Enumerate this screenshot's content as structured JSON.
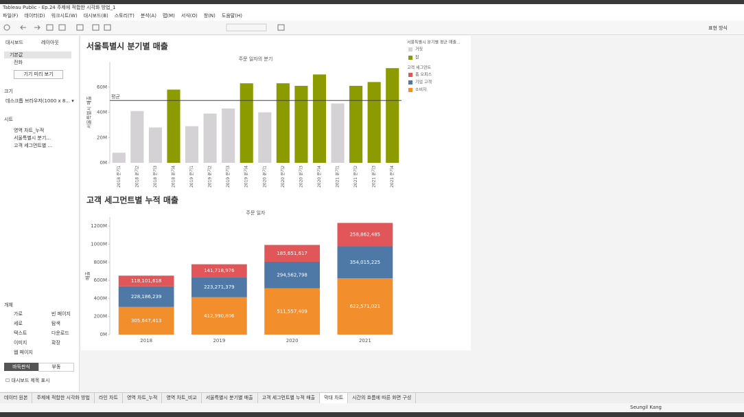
{
  "window_title": "Tableau Public - Ep.24 주제에 적합한 시각화 방법_1",
  "menu": [
    "파일(F)",
    "데이터(D)",
    "워크시트(W)",
    "대시보드(B)",
    "스토리(T)",
    "분석(A)",
    "맵(M)",
    "서식(O)",
    "창(N)",
    "도움말(H)"
  ],
  "toolbar": {
    "show_me": "표현 방식"
  },
  "sidebar": {
    "tabs": [
      "대시보드",
      "레이아웃"
    ],
    "devices": [
      "기본값",
      "전화"
    ],
    "preview_button": "기기 미리 보기",
    "size_heading": "크기",
    "size_value": "데스크톱 브라우저(1000 x 8... ▾",
    "sheets_heading": "시트",
    "sheets": [
      "영역 차트_누적",
      "서울특별시 분기...",
      "고객 세그먼트별 ..."
    ],
    "objects_heading": "개체",
    "objects": [
      "가로",
      "빈 페이지",
      "세로",
      "탐색",
      "텍스트",
      "다운로드",
      "이미지",
      "확장",
      "웹 페이지"
    ],
    "layout_modes": [
      "바둑판식",
      "부동"
    ],
    "show_title": "대시보드 제목 표시"
  },
  "chart_data": [
    {
      "type": "bar",
      "title": "서울특별시 분기별 매출",
      "subtitle": "주문 일자의 분기",
      "y_label": "서울특별시 매출",
      "categories": [
        "2018 분기1",
        "2018 분기2",
        "2018 분기3",
        "2018 분기4",
        "2019 분기1",
        "2019 분기2",
        "2019 분기3",
        "2019 분기4",
        "2020 분기1",
        "2020 분기2",
        "2020 분기3",
        "2020 분기4",
        "2021 분기1",
        "2021 분기2",
        "2021 분기3",
        "2021 분기4"
      ],
      "values": [
        8,
        41,
        28,
        58,
        29,
        39,
        43,
        63,
        40,
        63,
        61,
        70,
        47,
        61,
        64,
        75
      ],
      "ylim": [
        0,
        80
      ],
      "yticks": [
        {
          "value": 0,
          "label": "0M"
        },
        {
          "value": 20,
          "label": "20M"
        },
        {
          "value": 40,
          "label": "40M"
        },
        {
          "value": 60,
          "label": "60M"
        }
      ],
      "reference_line": {
        "label": "평균",
        "value": 49.4
      },
      "legend": {
        "title": "서울특별시 분기별 평균 매출...",
        "items": [
          {
            "name": "거짓",
            "color": "#d4d2d4"
          },
          {
            "name": "참",
            "color": "#8c9c00"
          }
        ]
      }
    },
    {
      "type": "stacked_bar",
      "title": "고객 세그먼트별 누적 매출",
      "subtitle": "주문 일자",
      "y_label": "매출",
      "categories": [
        "2018",
        "2019",
        "2020",
        "2021"
      ],
      "series": [
        {
          "name": "소비자",
          "color": "#f28e2b",
          "values": [
            305647413,
            412990806,
            511557409,
            622571021
          ],
          "value_labels": [
            "305,647,413",
            "412,990,806",
            "511,557,409",
            "622,571,021"
          ]
        },
        {
          "name": "기업 고객",
          "color": "#4e79a7",
          "values": [
            228186239,
            223271379,
            294562798,
            354015225
          ],
          "value_labels": [
            "228,186,239",
            "223,271,379",
            "294,562,798",
            "354,015,225"
          ]
        },
        {
          "name": "홈 오피스",
          "color": "#e15759",
          "values": [
            118101618,
            141718976,
            185651617,
            258862485
          ],
          "value_labels": [
            "118,101,618",
            "141,718,976",
            "185,651,617",
            "258,862,485"
          ]
        }
      ],
      "legend_title": "고객 세그먼트",
      "ylim": [
        0,
        1300000000
      ],
      "yticks": [
        {
          "value": 0,
          "label": "0M"
        },
        {
          "value": 200000000,
          "label": "200M"
        },
        {
          "value": 400000000,
          "label": "400M"
        },
        {
          "value": 600000000,
          "label": "600M"
        },
        {
          "value": 800000000,
          "label": "800M"
        },
        {
          "value": 1000000000,
          "label": "1000M"
        },
        {
          "value": 1200000000,
          "label": "1200M"
        }
      ]
    }
  ],
  "tabs": [
    "데이터 원본",
    "주제에 적합한 시각화 방법",
    "라인 차트",
    "영역 차트_누적",
    "영역 차트_비교",
    "서울특별시 분기별 매출",
    "고객 세그먼트별 누적 매출",
    "막대 차트",
    "시간의 흐름에 따른 화면 구성"
  ],
  "status": {
    "user": "Seungil Kang"
  }
}
